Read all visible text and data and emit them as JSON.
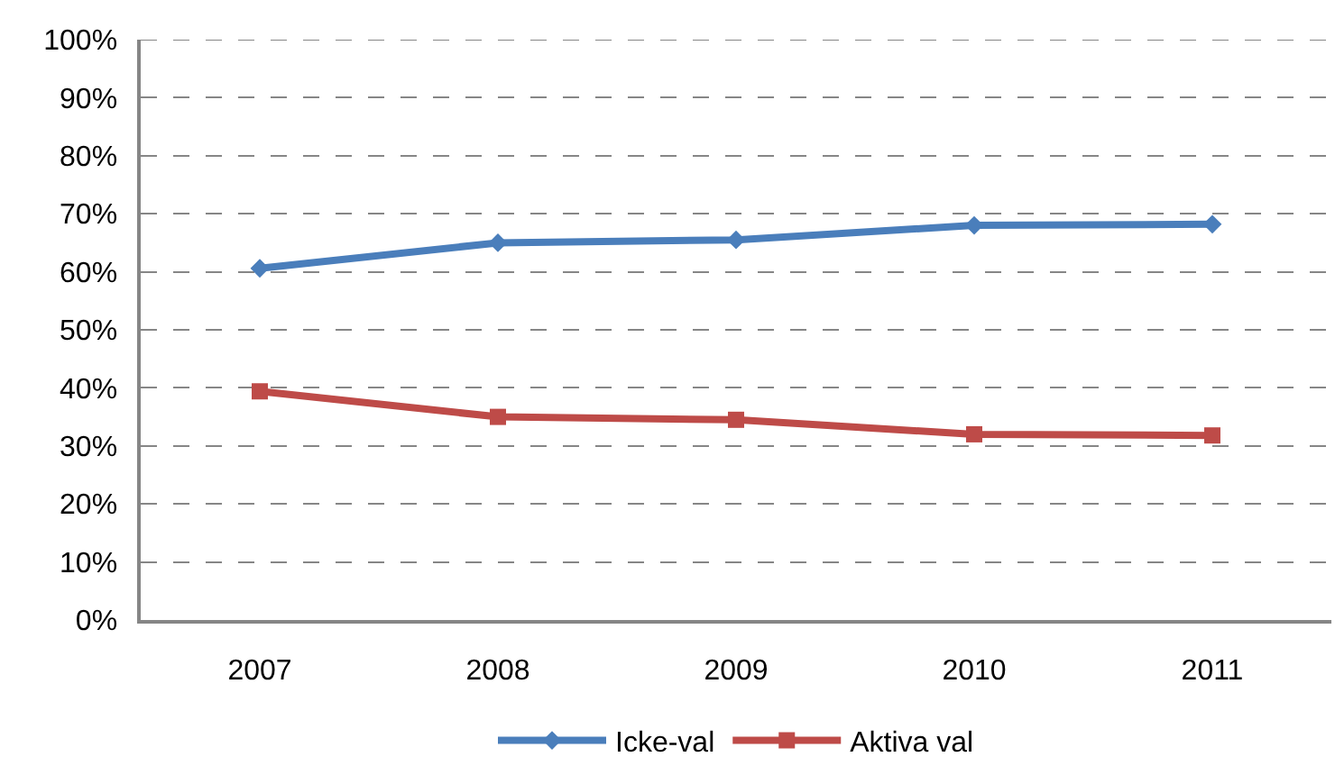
{
  "chart_data": {
    "type": "line",
    "categories": [
      "2007",
      "2008",
      "2009",
      "2010",
      "2011"
    ],
    "series": [
      {
        "name": "Icke-val",
        "color": "#4a7ebb",
        "marker": "diamond",
        "values": [
          60.6,
          65.0,
          65.5,
          68.0,
          68.2
        ]
      },
      {
        "name": "Aktiva val",
        "color": "#be4b48",
        "marker": "square",
        "values": [
          39.4,
          35.0,
          34.5,
          32.0,
          31.8
        ]
      }
    ],
    "ylim": [
      0,
      100
    ],
    "yticks": [
      {
        "value": 0,
        "label": "0%"
      },
      {
        "value": 10,
        "label": "10%"
      },
      {
        "value": 20,
        "label": "20%"
      },
      {
        "value": 30,
        "label": "30%"
      },
      {
        "value": 40,
        "label": "40%"
      },
      {
        "value": 50,
        "label": "50%"
      },
      {
        "value": 60,
        "label": "60%"
      },
      {
        "value": 70,
        "label": "70%"
      },
      {
        "value": 80,
        "label": "80%"
      },
      {
        "value": 90,
        "label": "90%"
      },
      {
        "value": 100,
        "label": "100%"
      }
    ],
    "grid": "y",
    "legend": "bottom",
    "line_style": "solid"
  }
}
